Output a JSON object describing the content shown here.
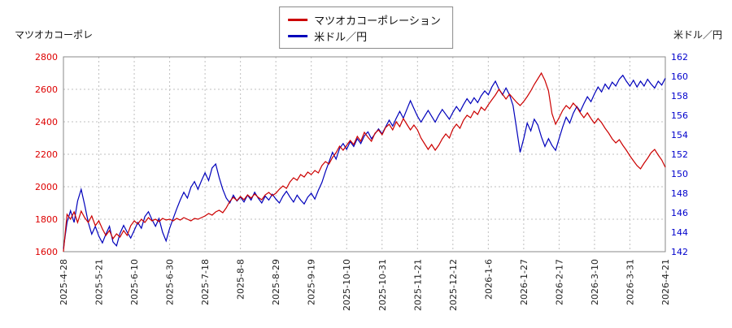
{
  "header": {
    "left_label": "マツオカコーポレ",
    "right_label": "米ドル／円"
  },
  "legend": {
    "items": [
      {
        "label": "マツオカコーポレーション",
        "color": "#cc0000"
      },
      {
        "label": "米ドル／円",
        "color": "#0000bb"
      }
    ]
  },
  "chart_data": {
    "type": "line",
    "grid": true,
    "legend_position": "top-center",
    "x_tick_labels": [
      "2025-4-28",
      "2025-5-21",
      "2025-6-10",
      "2025-6-30",
      "2025-7-18",
      "2025-8-8",
      "2025-8-29",
      "2025-9-19",
      "2025-10-10",
      "2025-10-31",
      "2025-11-21",
      "2025-12-12",
      "2026-1-6",
      "2026-1-27",
      "2026-2-17",
      "2026-3-10",
      "2026-3-31",
      "2026-4-21"
    ],
    "points_per_interval": 10,
    "left_axis": {
      "label": "マツオカコーポレ",
      "min": 1600,
      "max": 2800,
      "step": 200,
      "color": "#dd0000"
    },
    "right_axis": {
      "label": "米ドル／円",
      "min": 142,
      "max": 162,
      "step": 2,
      "color": "#0000cc"
    },
    "series": [
      {
        "name": "マツオカコーポレーション",
        "axis": "left",
        "color": "#cc0000",
        "values": [
          1600,
          1830,
          1800,
          1845,
          1780,
          1850,
          1810,
          1780,
          1820,
          1760,
          1790,
          1740,
          1700,
          1730,
          1680,
          1710,
          1690,
          1730,
          1700,
          1760,
          1790,
          1770,
          1800,
          1780,
          1810,
          1790,
          1800,
          1785,
          1805,
          1795,
          1800,
          1790,
          1805,
          1795,
          1810,
          1800,
          1790,
          1805,
          1800,
          1810,
          1820,
          1835,
          1825,
          1845,
          1855,
          1840,
          1870,
          1910,
          1935,
          1915,
          1940,
          1920,
          1950,
          1930,
          1955,
          1935,
          1920,
          1950,
          1965,
          1945,
          1960,
          1985,
          2005,
          1990,
          2030,
          2055,
          2040,
          2075,
          2060,
          2090,
          2075,
          2100,
          2085,
          2130,
          2155,
          2140,
          2180,
          2210,
          2250,
          2225,
          2255,
          2285,
          2260,
          2310,
          2280,
          2335,
          2305,
          2280,
          2330,
          2350,
          2320,
          2365,
          2385,
          2350,
          2400,
          2370,
          2420,
          2385,
          2350,
          2380,
          2350,
          2300,
          2265,
          2230,
          2260,
          2225,
          2255,
          2295,
          2325,
          2300,
          2355,
          2385,
          2360,
          2410,
          2440,
          2425,
          2465,
          2445,
          2490,
          2470,
          2505,
          2535,
          2565,
          2600,
          2570,
          2540,
          2570,
          2545,
          2520,
          2500,
          2525,
          2555,
          2590,
          2630,
          2665,
          2700,
          2655,
          2590,
          2450,
          2385,
          2425,
          2470,
          2500,
          2480,
          2515,
          2490,
          2455,
          2425,
          2455,
          2420,
          2390,
          2420,
          2395,
          2360,
          2330,
          2295,
          2270,
          2290,
          2255,
          2225,
          2190,
          2160,
          2130,
          2110,
          2145,
          2175,
          2210,
          2230,
          2195,
          2165,
          2120
        ]
      },
      {
        "name": "米ドル／円",
        "axis": "right",
        "color": "#0000bb",
        "values": [
          142.3,
          145.0,
          146.2,
          145.0,
          147.2,
          148.4,
          146.8,
          145.0,
          143.8,
          144.6,
          143.6,
          142.9,
          143.8,
          144.6,
          143.0,
          142.6,
          143.9,
          144.7,
          144.0,
          143.4,
          144.2,
          145.0,
          144.4,
          145.6,
          146.1,
          145.3,
          144.6,
          145.4,
          144.0,
          143.1,
          144.4,
          145.4,
          146.4,
          147.3,
          148.1,
          147.5,
          148.6,
          149.2,
          148.4,
          149.3,
          150.1,
          149.3,
          150.6,
          151.0,
          149.6,
          148.4,
          147.5,
          147.0,
          147.8,
          147.2,
          147.6,
          147.1,
          147.8,
          147.3,
          148.1,
          147.5,
          147.0,
          147.7,
          147.3,
          147.9,
          147.4,
          147.0,
          147.7,
          148.2,
          147.6,
          147.1,
          147.8,
          147.3,
          146.9,
          147.6,
          148.0,
          147.4,
          148.3,
          149.1,
          150.2,
          151.2,
          152.2,
          151.5,
          152.6,
          153.1,
          152.5,
          153.3,
          152.8,
          153.6,
          153.1,
          153.9,
          154.3,
          153.6,
          154.1,
          154.6,
          154.1,
          154.8,
          155.5,
          154.9,
          155.7,
          156.4,
          155.7,
          156.6,
          157.5,
          156.7,
          155.9,
          155.3,
          155.9,
          156.5,
          155.9,
          155.3,
          156.0,
          156.6,
          156.1,
          155.6,
          156.3,
          156.9,
          156.4,
          157.1,
          157.7,
          157.2,
          157.8,
          157.3,
          158.0,
          158.5,
          158.1,
          158.9,
          159.5,
          158.7,
          158.1,
          158.8,
          158.1,
          157.0,
          154.6,
          152.2,
          153.6,
          155.2,
          154.4,
          155.6,
          155.0,
          153.8,
          152.8,
          153.6,
          152.9,
          152.4,
          153.6,
          154.8,
          155.8,
          155.2,
          156.2,
          156.9,
          156.4,
          157.2,
          157.9,
          157.4,
          158.2,
          158.9,
          158.4,
          159.2,
          158.7,
          159.4,
          159.0,
          159.7,
          160.1,
          159.5,
          159.0,
          159.6,
          158.9,
          159.5,
          159.0,
          159.7,
          159.2,
          158.8,
          159.5,
          159.1,
          159.8
        ]
      }
    ]
  }
}
